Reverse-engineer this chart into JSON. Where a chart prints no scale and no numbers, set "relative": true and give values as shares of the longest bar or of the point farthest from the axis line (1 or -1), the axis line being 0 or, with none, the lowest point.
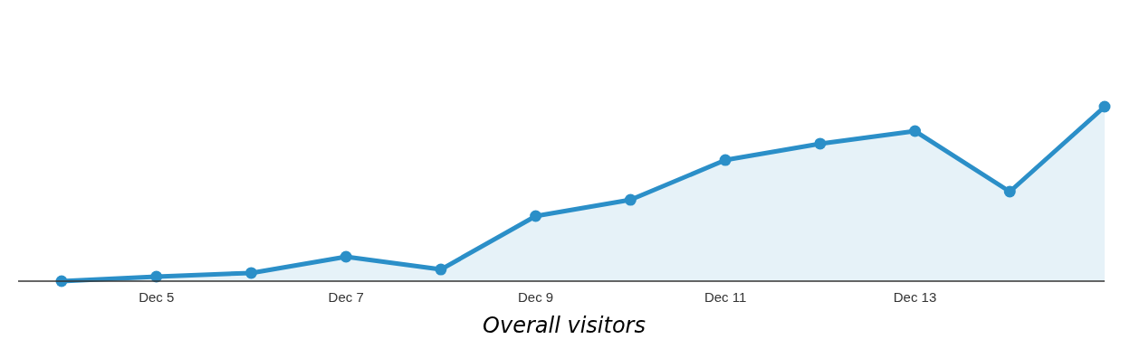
{
  "chart_data": {
    "type": "area",
    "relative": true,
    "categories": [
      null,
      "Dec 5",
      null,
      "Dec 7",
      null,
      "Dec 9",
      null,
      "Dec 11",
      null,
      "Dec 13",
      null,
      null
    ],
    "series": [
      {
        "color": "#2b8fc8",
        "values": [
          0,
          0.026,
          0.047,
          0.14,
          0.067,
          0.373,
          0.466,
          0.694,
          0.788,
          0.86,
          0.513,
          1
        ]
      }
    ],
    "marker": "circle",
    "annotations": [
      "Overall visitors"
    ]
  }
}
